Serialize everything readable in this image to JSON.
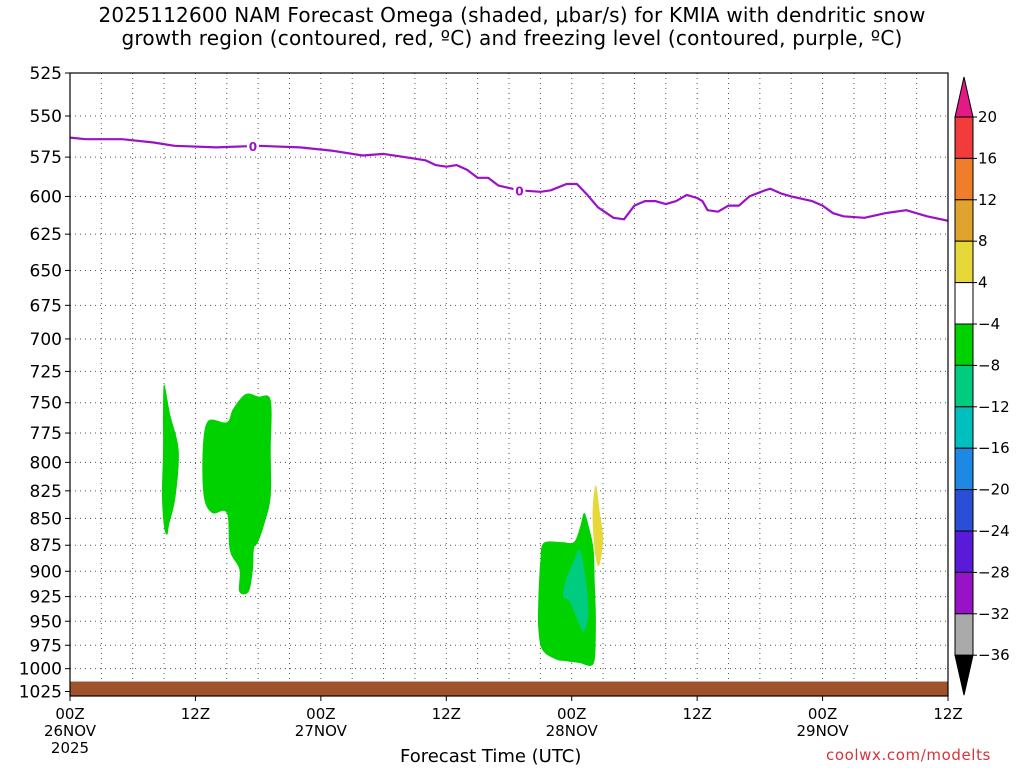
{
  "title": {
    "line1": "2025112600 NAM Forecast Omega (shaded, μbar/s) for KMIA with dendritic snow",
    "line2": "growth region (contoured, red, ºC) and freezing level (contoured, purple, ºC)"
  },
  "watermark": "coolwx.com/modelts",
  "chart_data": {
    "type": "contour",
    "xlabel": "Forecast Time (UTC)",
    "ylabel": "",
    "x_ticks": [
      {
        "hour": 0,
        "label": "00Z",
        "date": "26NOV",
        "year": "2025"
      },
      {
        "hour": 12,
        "label": "12Z",
        "date": "",
        "year": ""
      },
      {
        "hour": 24,
        "label": "00Z",
        "date": "27NOV",
        "year": ""
      },
      {
        "hour": 36,
        "label": "12Z",
        "date": "",
        "year": ""
      },
      {
        "hour": 48,
        "label": "00Z",
        "date": "28NOV",
        "year": ""
      },
      {
        "hour": 60,
        "label": "12Z",
        "date": "",
        "year": ""
      },
      {
        "hour": 72,
        "label": "00Z",
        "date": "29NOV",
        "year": ""
      },
      {
        "hour": 84,
        "label": "12Z",
        "date": "",
        "year": ""
      }
    ],
    "xlim": [
      0,
      84
    ],
    "y_ticks": [
      525,
      550,
      575,
      600,
      625,
      650,
      675,
      700,
      725,
      750,
      775,
      800,
      825,
      850,
      875,
      900,
      925,
      950,
      975,
      1000,
      1025
    ],
    "ylim": [
      1030,
      525
    ],
    "y_scale": "log-pressure",
    "grid": true,
    "freezing_level": {
      "color": "#9a12c8",
      "label": "0",
      "label_hours": [
        17.5,
        43
      ],
      "points": [
        [
          0,
          563
        ],
        [
          1.5,
          564
        ],
        [
          5,
          564
        ],
        [
          8,
          566
        ],
        [
          10,
          568
        ],
        [
          14,
          569
        ],
        [
          18,
          568
        ],
        [
          22,
          569
        ],
        [
          25,
          571
        ],
        [
          28,
          574
        ],
        [
          30,
          573
        ],
        [
          32,
          575
        ],
        [
          34,
          577
        ],
        [
          35,
          580
        ],
        [
          36,
          581
        ],
        [
          37,
          580
        ],
        [
          38,
          583
        ],
        [
          39,
          588
        ],
        [
          40,
          588
        ],
        [
          41,
          593
        ],
        [
          43,
          596
        ],
        [
          45,
          597
        ],
        [
          46,
          596
        ],
        [
          47.5,
          592
        ],
        [
          48.5,
          592
        ],
        [
          49.5,
          599
        ],
        [
          50.5,
          607
        ],
        [
          52,
          614
        ],
        [
          53,
          615
        ],
        [
          54,
          606
        ],
        [
          55,
          603
        ],
        [
          56,
          603
        ],
        [
          57,
          605
        ],
        [
          58,
          603
        ],
        [
          59,
          599
        ],
        [
          60,
          601
        ],
        [
          60.5,
          603
        ],
        [
          61,
          609
        ],
        [
          62,
          610
        ],
        [
          63,
          606
        ],
        [
          64,
          606
        ],
        [
          65,
          600
        ],
        [
          66.5,
          596
        ],
        [
          67,
          595
        ],
        [
          68,
          598
        ],
        [
          69,
          600
        ],
        [
          71,
          603
        ],
        [
          72,
          606
        ],
        [
          73,
          611
        ],
        [
          74,
          613
        ],
        [
          76,
          614
        ],
        [
          78,
          611
        ],
        [
          80,
          609
        ],
        [
          82,
          613
        ],
        [
          84,
          616
        ]
      ]
    },
    "omega_regions": [
      {
        "color": "#00d200",
        "value_range": [
          -8,
          -4
        ],
        "outline": [
          [
            9.0,
            735
          ],
          [
            9.6,
            760
          ],
          [
            10.4,
            790
          ],
          [
            10.1,
            830
          ],
          [
            9.5,
            855
          ],
          [
            9.3,
            865
          ],
          [
            9.0,
            858
          ],
          [
            8.8,
            830
          ],
          [
            8.9,
            790
          ],
          [
            8.9,
            760
          ]
        ]
      },
      {
        "color": "#00d200",
        "value_range": [
          -8,
          -4
        ],
        "outline": [
          [
            13.2,
            765
          ],
          [
            15.0,
            766
          ],
          [
            15.6,
            755
          ],
          [
            16.8,
            743
          ],
          [
            18.0,
            745
          ],
          [
            19.2,
            748
          ],
          [
            19.2,
            790
          ],
          [
            19.2,
            830
          ],
          [
            18.6,
            855
          ],
          [
            18.0,
            872
          ],
          [
            17.6,
            878
          ],
          [
            17.5,
            898
          ],
          [
            17.1,
            920
          ],
          [
            16.2,
            920
          ],
          [
            16.2,
            898
          ],
          [
            15.3,
            880
          ],
          [
            15.0,
            845
          ],
          [
            13.6,
            845
          ],
          [
            12.8,
            830
          ],
          [
            12.7,
            790
          ]
        ]
      },
      {
        "color": "#00d200",
        "value_range": [
          -8,
          -4
        ],
        "outline": [
          [
            45.3,
            873
          ],
          [
            47.0,
            872
          ],
          [
            48.2,
            872
          ],
          [
            48.8,
            858
          ],
          [
            49.2,
            845
          ],
          [
            49.7,
            860
          ],
          [
            50.1,
            880
          ],
          [
            50.2,
            910
          ],
          [
            50.3,
            940
          ],
          [
            50.3,
            965
          ],
          [
            50.2,
            990
          ],
          [
            49.8,
            997
          ],
          [
            48.8,
            994
          ],
          [
            47.5,
            992
          ],
          [
            46.5,
            990
          ],
          [
            45.2,
            980
          ],
          [
            44.8,
            958
          ],
          [
            44.8,
            930
          ],
          [
            44.9,
            905
          ],
          [
            45.0,
            890
          ]
        ]
      },
      {
        "color": "#00cc80",
        "value_range": [
          -12,
          -8
        ],
        "outline": [
          [
            48.2,
            890
          ],
          [
            48.8,
            880
          ],
          [
            49.4,
            912
          ],
          [
            49.6,
            940
          ],
          [
            49.3,
            958
          ],
          [
            49.0,
            960
          ],
          [
            48.6,
            950
          ],
          [
            47.8,
            930
          ],
          [
            47.2,
            925
          ],
          [
            47.4,
            910
          ]
        ]
      },
      {
        "color": "#e6d838",
        "value_range": [
          4,
          8
        ],
        "outline": [
          [
            50.3,
            820
          ],
          [
            50.7,
            845
          ],
          [
            51.0,
            870
          ],
          [
            50.6,
            895
          ],
          [
            50.2,
            880
          ],
          [
            50.0,
            845
          ]
        ]
      }
    ],
    "terrain": {
      "color": "#a0522d",
      "top_pressure": 1014
    },
    "colorbar": {
      "label": "μbar/s",
      "levels": [
        "20",
        "16",
        "12",
        "8",
        "4",
        "−4",
        "−8",
        "−12",
        "−16",
        "−20",
        "−24",
        "−28",
        "−32",
        "−36"
      ],
      "colors": [
        "#e31a85",
        "#f23b3b",
        "#ef7d29",
        "#e0a32e",
        "#e6d838",
        "#ffffff",
        "#00d200",
        "#00cc80",
        "#00bfbf",
        "#1e88e5",
        "#2a4fd6",
        "#5a1ad9",
        "#9a12c8",
        "#aaaaaa",
        "#000000"
      ]
    }
  }
}
